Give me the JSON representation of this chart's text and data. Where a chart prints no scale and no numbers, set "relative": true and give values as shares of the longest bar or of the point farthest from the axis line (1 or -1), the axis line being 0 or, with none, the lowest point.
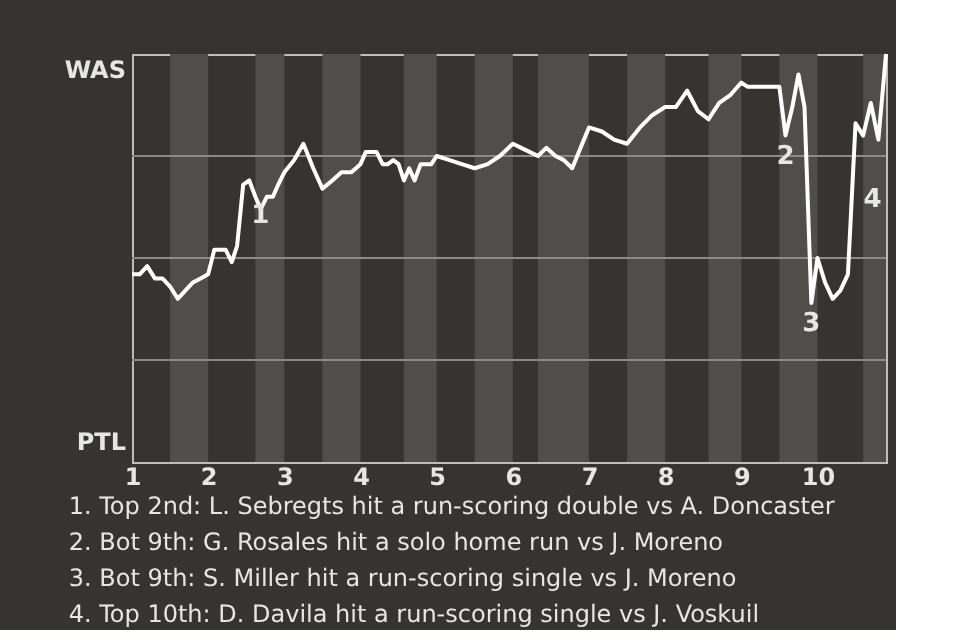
{
  "chart_data": {
    "type": "line",
    "relative": true,
    "x": [
      1,
      1.1,
      1.2,
      1.3,
      1.4,
      1.5,
      1.6,
      1.7,
      1.8,
      1.9,
      2,
      2.08,
      2.15,
      2.23,
      2.31,
      2.38,
      2.46,
      2.54,
      2.62,
      2.69,
      2.77,
      2.85,
      2.92,
      3,
      3.13,
      3.25,
      3.38,
      3.5,
      3.63,
      3.75,
      3.88,
      4,
      4.07,
      4.14,
      4.21,
      4.29,
      4.36,
      4.43,
      4.5,
      4.57,
      4.64,
      4.71,
      4.79,
      4.86,
      4.93,
      5,
      5.17,
      5.33,
      5.5,
      5.67,
      5.83,
      6,
      6.11,
      6.22,
      6.33,
      6.44,
      6.56,
      6.67,
      6.78,
      6.89,
      7,
      7.17,
      7.33,
      7.5,
      7.67,
      7.83,
      8,
      8.14,
      8.29,
      8.43,
      8.57,
      8.71,
      8.86,
      9,
      9.08,
      9.17,
      9.25,
      9.33,
      9.42,
      9.5,
      9.58,
      9.67,
      9.75,
      9.83,
      9.92,
      10,
      10.1,
      10.2,
      10.3,
      10.4,
      10.5,
      10.6,
      10.7,
      10.8,
      10.9
    ],
    "series": [
      {
        "color": "#ffffff",
        "values": [
          0.46,
          0.46,
          0.48,
          0.45,
          0.45,
          0.43,
          0.4,
          0.42,
          0.44,
          0.45,
          0.46,
          0.52,
          0.52,
          0.52,
          0.49,
          0.53,
          0.68,
          0.69,
          0.65,
          0.62,
          0.65,
          0.65,
          0.68,
          0.71,
          0.74,
          0.78,
          0.72,
          0.67,
          0.69,
          0.71,
          0.71,
          0.73,
          0.76,
          0.76,
          0.76,
          0.73,
          0.73,
          0.74,
          0.73,
          0.69,
          0.72,
          0.69,
          0.73,
          0.73,
          0.73,
          0.75,
          0.74,
          0.73,
          0.72,
          0.73,
          0.75,
          0.78,
          0.77,
          0.76,
          0.75,
          0.77,
          0.75,
          0.74,
          0.72,
          0.77,
          0.82,
          0.81,
          0.79,
          0.78,
          0.82,
          0.85,
          0.87,
          0.87,
          0.91,
          0.86,
          0.84,
          0.88,
          0.9,
          0.93,
          0.92,
          0.92,
          0.92,
          0.92,
          0.92,
          0.92,
          0.8,
          0.87,
          0.95,
          0.87,
          0.39,
          0.5,
          0.44,
          0.4,
          0.42,
          0.46,
          0.83,
          0.8,
          0.88,
          0.79,
          1.0
        ]
      }
    ],
    "xlim": [
      1,
      10.9
    ],
    "xticks": [
      1,
      2,
      3,
      4,
      5,
      6,
      7,
      8,
      9,
      10
    ],
    "marker": "none",
    "line_style": "solid",
    "legend": false,
    "bands": [
      {
        "axis": "x",
        "from": 1.5,
        "to": 2,
        "color": "#4f4e4b"
      },
      {
        "axis": "x",
        "from": 2.62,
        "to": 3,
        "color": "#4f4e4b"
      },
      {
        "axis": "x",
        "from": 3.5,
        "to": 4,
        "color": "#4f4e4b"
      },
      {
        "axis": "x",
        "from": 4.57,
        "to": 5,
        "color": "#4f4e4b"
      },
      {
        "axis": "x",
        "from": 5.5,
        "to": 6,
        "color": "#4f4e4b"
      },
      {
        "axis": "x",
        "from": 6.33,
        "to": 7,
        "color": "#4f4e4b"
      },
      {
        "axis": "x",
        "from": 7.5,
        "to": 8,
        "color": "#4f4e4b"
      },
      {
        "axis": "x",
        "from": 8.57,
        "to": 9,
        "color": "#4f4e4b"
      },
      {
        "axis": "x",
        "from": 9.5,
        "to": 10,
        "color": "#4f4e4b"
      },
      {
        "axis": "x",
        "from": 10.6,
        "to": 10.9,
        "color": "#4f4e4b"
      }
    ],
    "annotations": [
      "WAS",
      "PTL",
      {
        "text": "1",
        "x": 2.46
      },
      {
        "text": "2",
        "x": 9.58
      },
      {
        "text": "3",
        "x": 9.92
      },
      {
        "text": "4",
        "x": 10.5
      },
      "1. Top 2nd: L. Sebregts hit a run-scoring double vs A. Doncaster",
      "2. Bot 9th: G. Rosales hit a solo home run vs J. Moreno",
      "3. Bot 9th: S. Miller hit a run-scoring single vs J. Moreno",
      "4. Top 10th: D. Davila hit a run-scoring single vs J. Voskuil"
    ]
  }
}
